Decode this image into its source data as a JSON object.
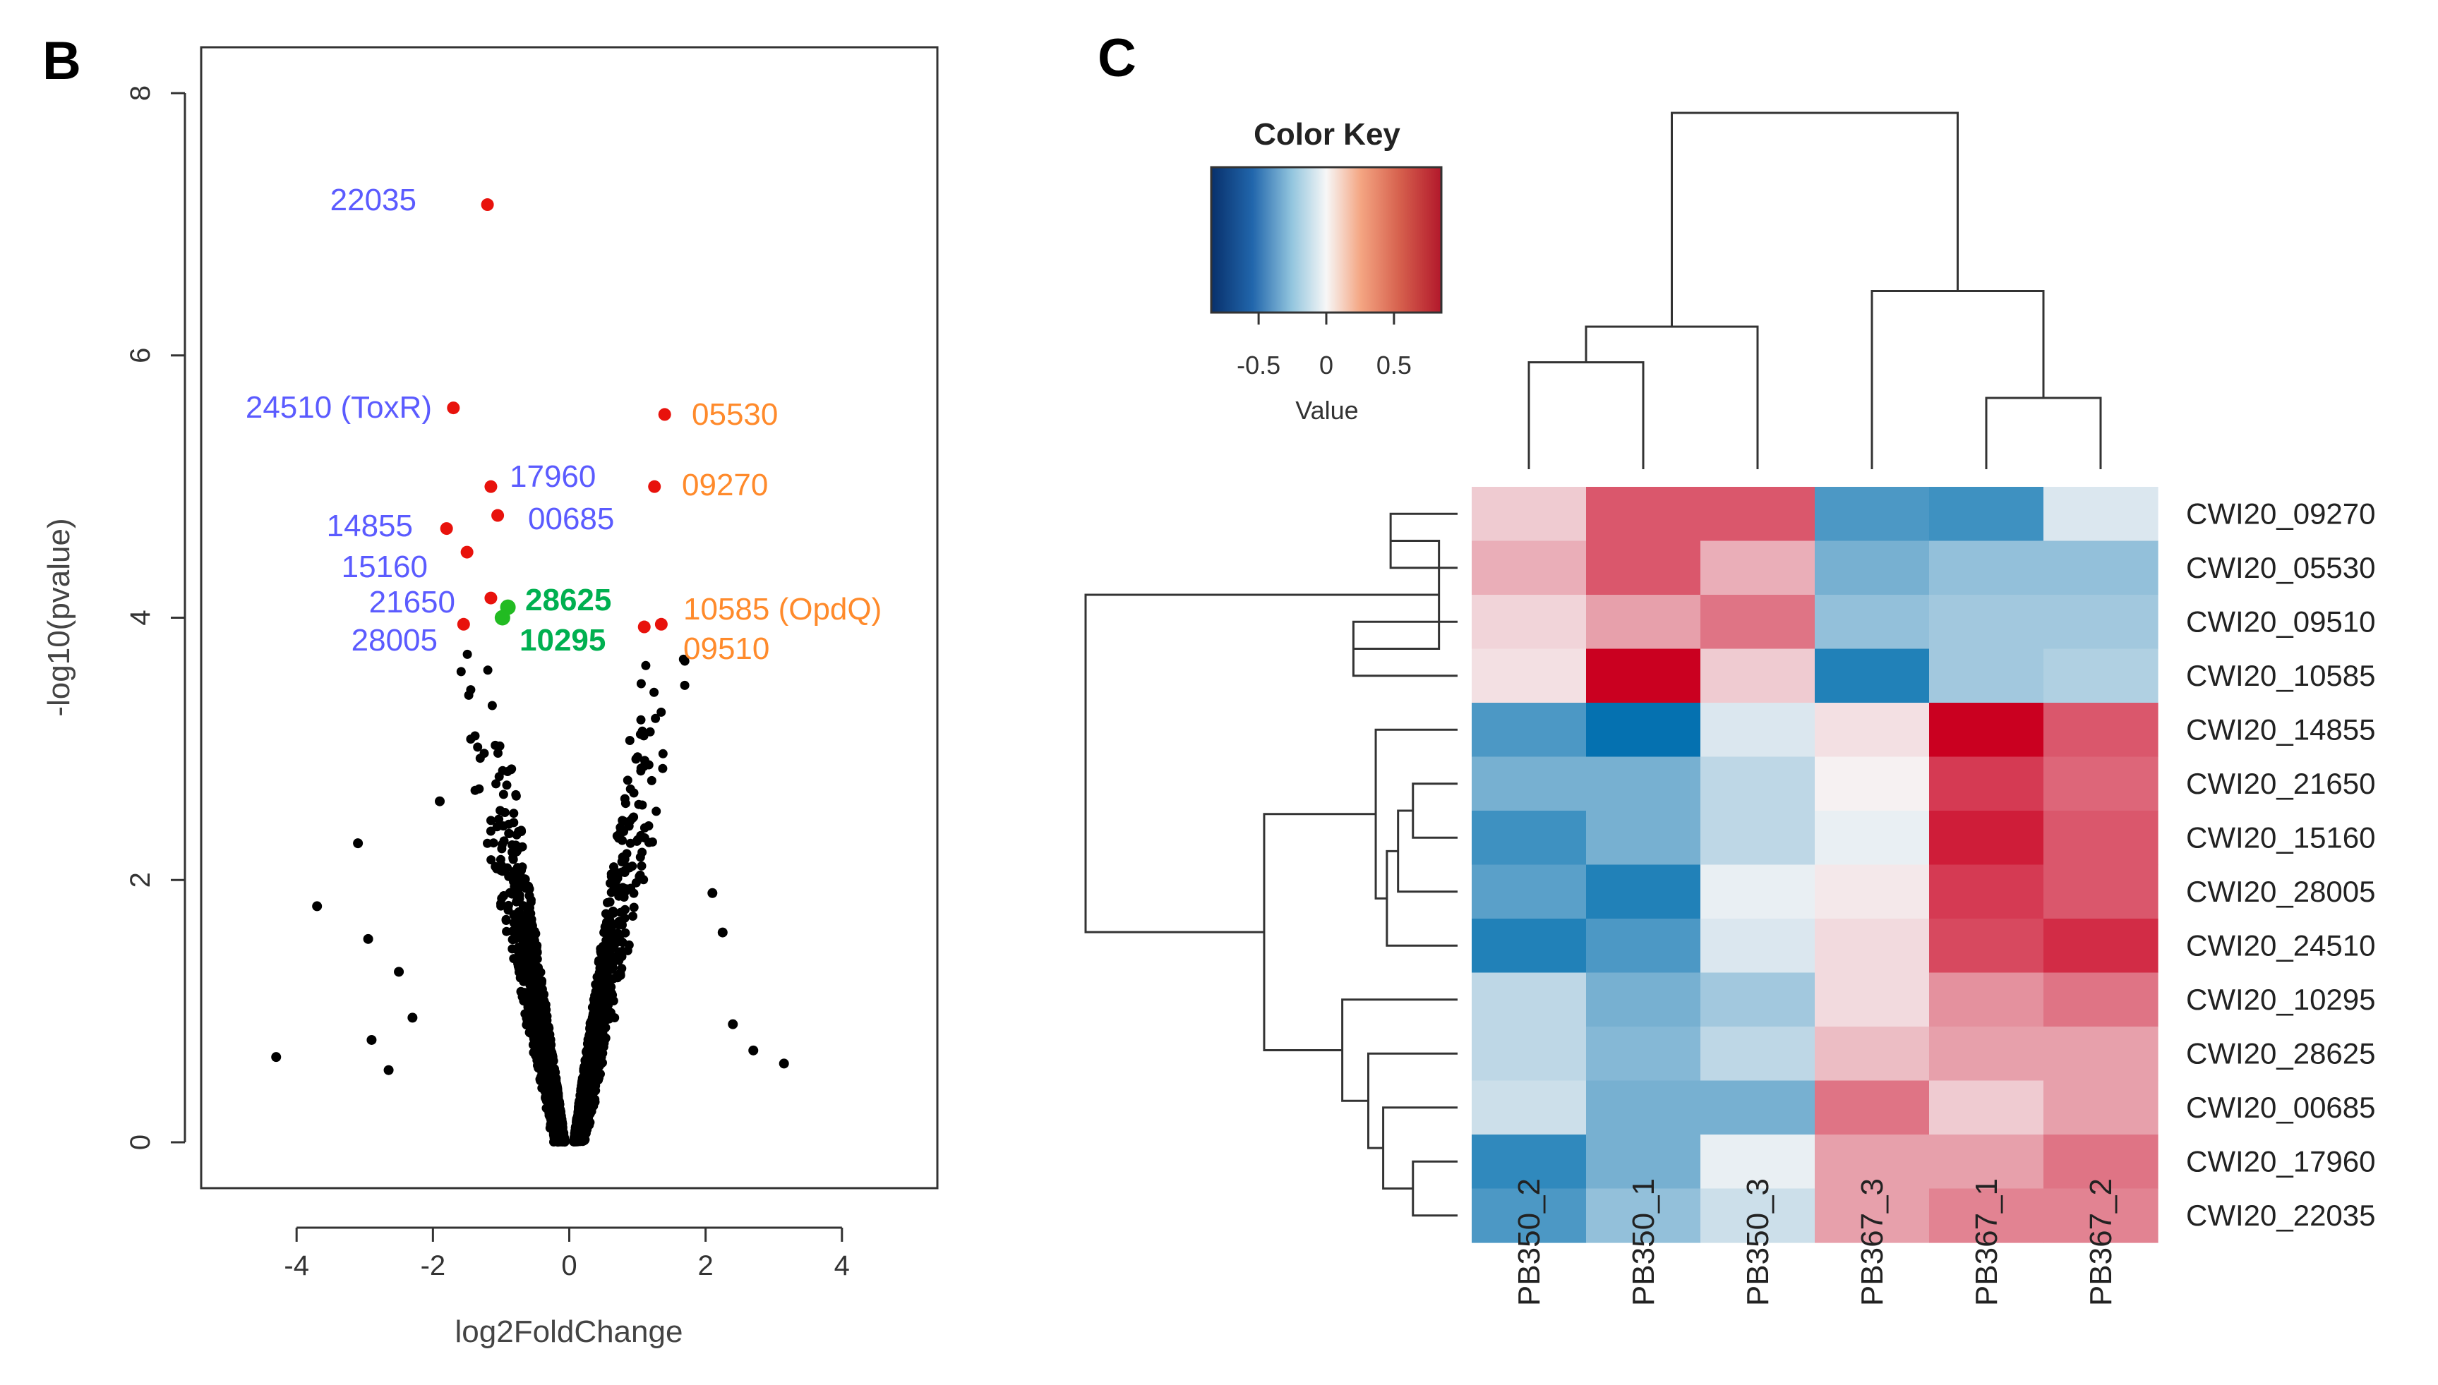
{
  "panels": {
    "left": "B",
    "right": "C"
  },
  "colors": {
    "background_points": "#000000",
    "significant_points": "#e8120c",
    "highlight_points": "#22bb22",
    "label_down": "#5b5bff",
    "label_up": "#ff8a2b",
    "label_green": "#00b050",
    "heat_low": "#0571b0",
    "heat_mid": "#f7f7f7",
    "heat_high": "#ca0020"
  },
  "chart_data": [
    {
      "type": "scatter",
      "title": "",
      "xlabel": "log2FoldChange",
      "ylabel": "-log10(pvalue)",
      "xlim": [
        -5.4,
        5.4
      ],
      "ylim": [
        -0.35,
        8.35
      ],
      "xticks": [
        -4,
        -2,
        0,
        2,
        4
      ],
      "yticks": [
        0,
        2,
        4,
        6,
        8
      ],
      "grid": false,
      "highlighted_points": [
        {
          "x": -1.2,
          "y": 7.15,
          "label": "22035",
          "group": "down",
          "color": "red"
        },
        {
          "x": -1.7,
          "y": 5.6,
          "label": "24510 (ToxR)",
          "group": "down",
          "color": "red"
        },
        {
          "x": 1.4,
          "y": 5.55,
          "label": "05530",
          "group": "up",
          "color": "red"
        },
        {
          "x": -1.15,
          "y": 5.0,
          "label": "17960",
          "group": "down",
          "color": "red"
        },
        {
          "x": 1.25,
          "y": 5.0,
          "label": "09270",
          "group": "up",
          "color": "red"
        },
        {
          "x": -1.05,
          "y": 4.78,
          "label": "00685",
          "group": "down",
          "color": "red"
        },
        {
          "x": -1.8,
          "y": 4.68,
          "label": "14855",
          "group": "down",
          "color": "red"
        },
        {
          "x": -1.5,
          "y": 4.5,
          "label": "15160",
          "group": "down",
          "color": "red"
        },
        {
          "x": -1.15,
          "y": 4.15,
          "label": "21650",
          "group": "down",
          "color": "red"
        },
        {
          "x": -1.55,
          "y": 3.95,
          "label": "28005",
          "group": "down",
          "color": "red"
        },
        {
          "x": 1.35,
          "y": 3.95,
          "label": "10585 (OpdQ)",
          "group": "up",
          "color": "red"
        },
        {
          "x": 1.1,
          "y": 3.93,
          "label": "09510",
          "group": "up",
          "color": "red"
        },
        {
          "x": -0.9,
          "y": 4.08,
          "label": "28625",
          "group": "green",
          "color": "green"
        },
        {
          "x": -0.98,
          "y": 4.0,
          "label": "10295",
          "group": "green",
          "color": "green"
        }
      ],
      "outlier_points": [
        {
          "x": -4.3,
          "y": 0.65
        },
        {
          "x": -3.7,
          "y": 1.8
        },
        {
          "x": -3.1,
          "y": 2.28
        },
        {
          "x": -2.95,
          "y": 1.55
        },
        {
          "x": -2.9,
          "y": 0.78
        },
        {
          "x": -2.5,
          "y": 1.3
        },
        {
          "x": -2.3,
          "y": 0.95
        },
        {
          "x": -1.9,
          "y": 2.6
        },
        {
          "x": -2.65,
          "y": 0.55
        },
        {
          "x": 2.25,
          "y": 1.6
        },
        {
          "x": 2.4,
          "y": 0.9
        },
        {
          "x": 2.7,
          "y": 0.7
        },
        {
          "x": 3.15,
          "y": 0.6
        },
        {
          "x": 2.1,
          "y": 1.9
        }
      ],
      "background_cloud": {
        "n_points": 2300,
        "description": "volcano shape"
      }
    },
    {
      "type": "heatmap",
      "title": "",
      "columns": [
        "PB350_2",
        "PB350_1",
        "PB350_3",
        "PB367_3",
        "PB367_1",
        "PB367_2"
      ],
      "rows": [
        "CWI20_09270",
        "CWI20_05530",
        "CWI20_09510",
        "CWI20_10585",
        "CWI20_14855",
        "CWI20_21650",
        "CWI20_15160",
        "CWI20_28005",
        "CWI20_24510",
        "CWI20_10295",
        "CWI20_28625",
        "CWI20_00685",
        "CWI20_17960",
        "CWI20_22035"
      ],
      "values": [
        [
          0.15,
          0.55,
          0.55,
          -0.6,
          -0.65,
          -0.1
        ],
        [
          0.25,
          0.55,
          0.25,
          -0.45,
          -0.35,
          -0.35
        ],
        [
          0.12,
          0.3,
          0.45,
          -0.35,
          -0.3,
          -0.3
        ],
        [
          0.08,
          0.9,
          0.15,
          -0.75,
          -0.3,
          -0.25
        ],
        [
          -0.6,
          -0.85,
          -0.1,
          0.08,
          0.9,
          0.55
        ],
        [
          -0.45,
          -0.45,
          -0.2,
          0.02,
          0.65,
          0.5
        ],
        [
          -0.65,
          -0.45,
          -0.2,
          -0.05,
          0.75,
          0.55
        ],
        [
          -0.55,
          -0.75,
          -0.05,
          0.05,
          0.65,
          0.55
        ],
        [
          -0.75,
          -0.6,
          -0.1,
          0.1,
          0.6,
          0.7
        ],
        [
          -0.2,
          -0.45,
          -0.3,
          0.1,
          0.35,
          0.45
        ],
        [
          -0.2,
          -0.4,
          -0.2,
          0.2,
          0.3,
          0.3
        ],
        [
          -0.15,
          -0.45,
          -0.45,
          0.45,
          0.15,
          0.3
        ],
        [
          -0.7,
          -0.45,
          -0.05,
          0.3,
          0.3,
          0.45
        ],
        [
          -0.6,
          -0.35,
          -0.15,
          0.3,
          0.4,
          0.4
        ]
      ],
      "color_key": {
        "title": "Color Key",
        "label": "Value",
        "range": [
          -0.85,
          0.85
        ],
        "ticks": [
          -0.5,
          0,
          0.5
        ],
        "tick_labels": [
          "-0.5",
          "0",
          "0.5"
        ]
      },
      "row_dendrogram": {
        "leaves": [
          "CWI20_09270",
          "CWI20_05530",
          "CWI20_09510",
          "CWI20_10585",
          "CWI20_14855",
          "CWI20_21650",
          "CWI20_15160",
          "CWI20_28005",
          "CWI20_24510",
          "CWI20_10295",
          "CWI20_28625",
          "CWI20_00685",
          "CWI20_17960",
          "CWI20_22035"
        ],
        "merges": [
          [
            [
              0
            ],
            [
              1
            ],
            0.18,
            0.42
          ],
          [
            [
              2
            ],
            [
              3
            ],
            0.28,
            0.0
          ],
          [
            [
              0,
              1
            ],
            [
              2,
              3
            ],
            0.05,
            0.0
          ],
          [
            [
              5
            ],
            [
              6
            ],
            0.12,
            0.0
          ],
          [
            [
              5,
              6
            ],
            [
              7
            ],
            0.16,
            0.0
          ],
          [
            [
              5,
              6,
              7
            ],
            [
              8
            ],
            0.19,
            0.0
          ],
          [
            [
              4
            ],
            [
              5,
              6,
              7,
              8
            ],
            0.22,
            0.0
          ],
          [
            [
              12
            ],
            [
              13
            ],
            0.12,
            0.0
          ],
          [
            [
              11
            ],
            [
              12,
              13
            ],
            0.2,
            0.0
          ],
          [
            [
              10
            ],
            [
              11,
              12,
              13
            ],
            0.24,
            0.0
          ],
          [
            [
              9
            ],
            [
              10,
              11,
              12,
              13
            ],
            0.31,
            0.0
          ],
          [
            [
              4,
              5,
              6,
              7,
              8
            ],
            [
              9,
              10,
              11,
              12,
              13
            ],
            0.52,
            0.0
          ],
          [
            [
              0,
              1,
              2,
              3
            ],
            [
              4,
              5,
              6,
              7,
              8,
              9,
              10,
              11,
              12,
              13
            ],
            1.0,
            0.0
          ]
        ]
      },
      "col_dendrogram": {
        "leaves": [
          "PB350_2",
          "PB350_1",
          "PB350_3",
          "PB367_3",
          "PB367_1",
          "PB367_2"
        ],
        "merges": [
          [
            [
              0
            ],
            [
              1
            ],
            0.3
          ],
          [
            [
              0,
              1
            ],
            [
              2
            ],
            0.4
          ],
          [
            [
              4
            ],
            [
              5
            ],
            0.2
          ],
          [
            [
              3
            ],
            [
              4,
              5
            ],
            0.5
          ],
          [
            [
              0,
              1,
              2
            ],
            [
              3,
              4,
              5
            ],
            1.0
          ]
        ]
      }
    }
  ]
}
